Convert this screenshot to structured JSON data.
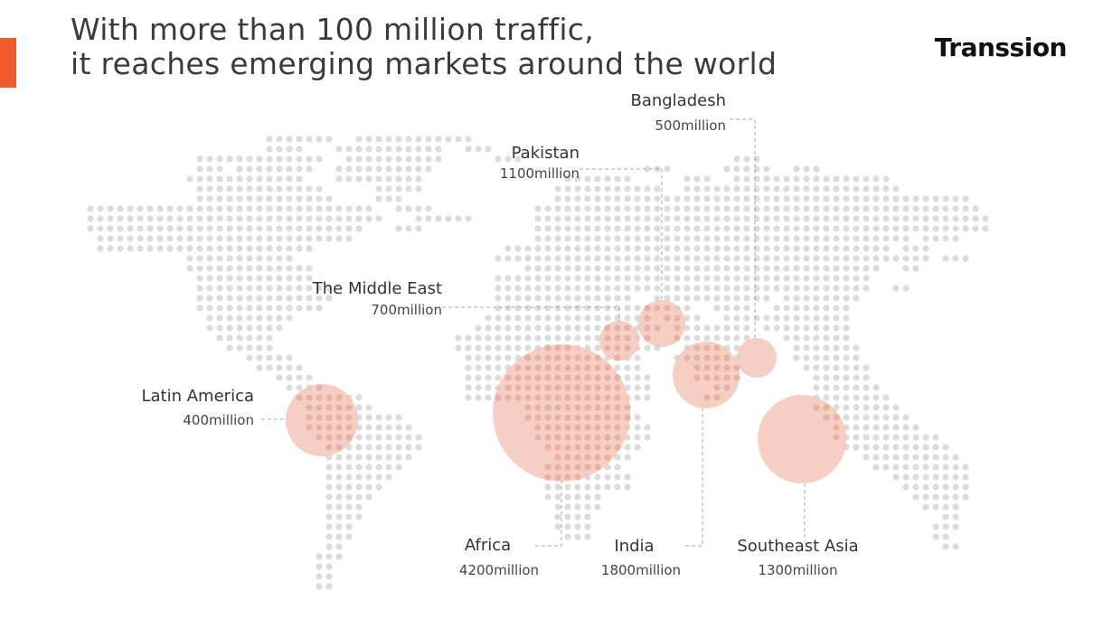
{
  "slide": {
    "title_line1": "With more than 100 million traffic,",
    "title_line2": "it reaches emerging markets around the world",
    "brand": "Transsion",
    "accent_color": "#ee5a2a"
  },
  "markets": [
    {
      "name": "Bangladesh",
      "value": "500million"
    },
    {
      "name": "Pakistan",
      "value": "1100million"
    },
    {
      "name": "The Middle East",
      "value": "700million"
    },
    {
      "name": "Latin America",
      "value": "400million"
    },
    {
      "name": "Africa",
      "value": "4200million"
    },
    {
      "name": "India",
      "value": "1800million"
    },
    {
      "name": "Southeast Asia",
      "value": "1300million"
    }
  ],
  "colors": {
    "dot": "#dcdcdc",
    "dot_in_bubble": "#e7b2a3",
    "bubble": "#f3c3b5",
    "leader_line": "#a9a9a9"
  }
}
